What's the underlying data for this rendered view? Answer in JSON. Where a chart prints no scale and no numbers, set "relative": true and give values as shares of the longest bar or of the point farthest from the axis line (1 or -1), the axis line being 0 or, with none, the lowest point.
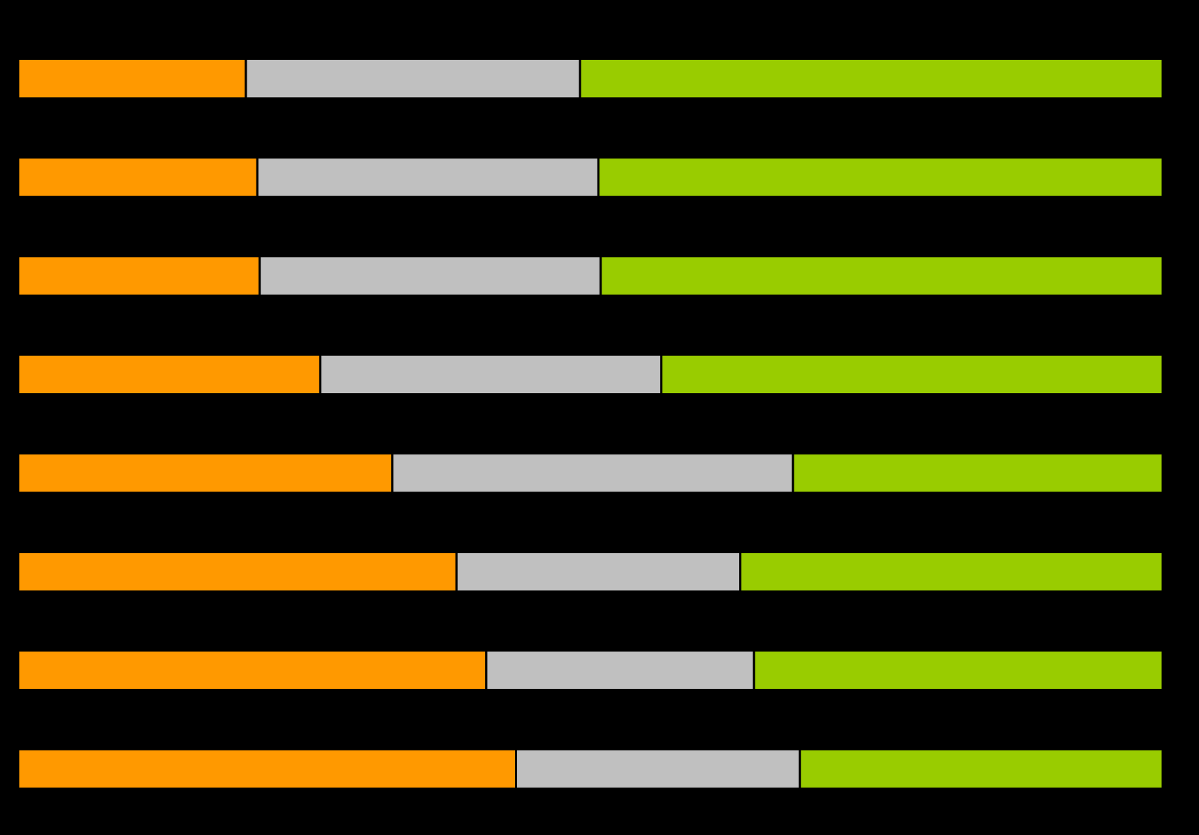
{
  "chart_data": {
    "type": "bar",
    "orientation": "horizontal",
    "stacked": true,
    "relative": true,
    "categories": [
      null,
      null,
      null,
      null,
      null,
      null,
      null,
      null
    ],
    "series": [
      {
        "color": "#ff9900",
        "values": [
          0.199,
          0.209,
          0.211,
          0.264,
          0.327,
          0.383,
          0.409,
          0.435
        ]
      },
      {
        "color": "#c0c0c0",
        "values": [
          0.292,
          0.298,
          0.298,
          0.298,
          0.35,
          0.248,
          0.234,
          0.248
        ]
      },
      {
        "color": "#99cc00",
        "values": [
          0.509,
          0.493,
          0.491,
          0.438,
          0.323,
          0.369,
          0.357,
          0.317
        ]
      }
    ]
  }
}
